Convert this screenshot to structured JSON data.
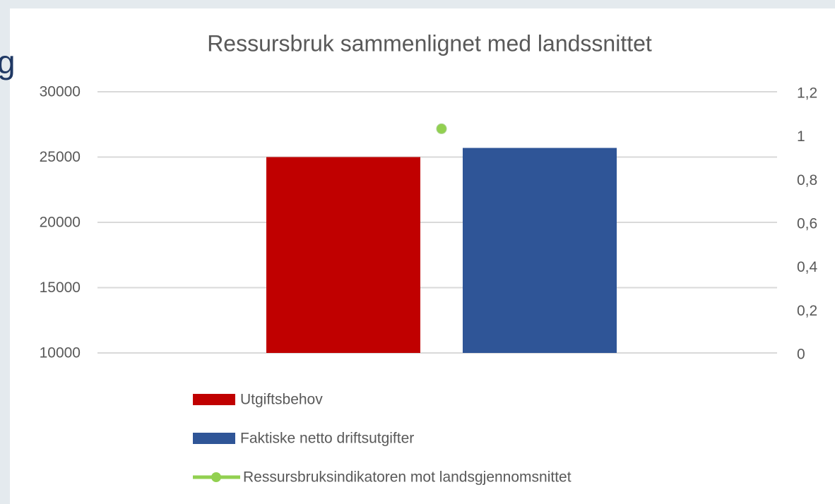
{
  "background_text": "g",
  "chart_data": {
    "type": "bar",
    "title": "Ressursbruk sammenlignet med landssnittet",
    "categories": [
      null
    ],
    "series": [
      {
        "name": "Utgiftsbehov",
        "color": "#c00000",
        "values": [
          25000
        ]
      },
      {
        "name": "Faktiske netto driftsutgifter",
        "color": "#2f5597",
        "values": [
          25700
        ]
      },
      {
        "name": "Ressursbruksindikatoren mot landsgjennomsnittet",
        "color": "#92d050",
        "type": "line",
        "axis": "y2",
        "values": [
          1.03
        ]
      }
    ],
    "ylim": [
      10000,
      30000
    ],
    "yticks": [
      10000,
      15000,
      20000,
      25000,
      30000
    ],
    "y2lim": [
      0,
      1.2
    ],
    "y2ticks": [
      0,
      {
        "value": 0.2,
        "label": "0,2"
      },
      {
        "value": 0.4,
        "label": "0,4"
      },
      {
        "value": 0.6,
        "label": "0,6"
      },
      {
        "value": 0.8,
        "label": "0,8"
      },
      1,
      {
        "value": 1.2,
        "label": "1,2"
      }
    ],
    "grid": true,
    "legend": "bottom"
  }
}
